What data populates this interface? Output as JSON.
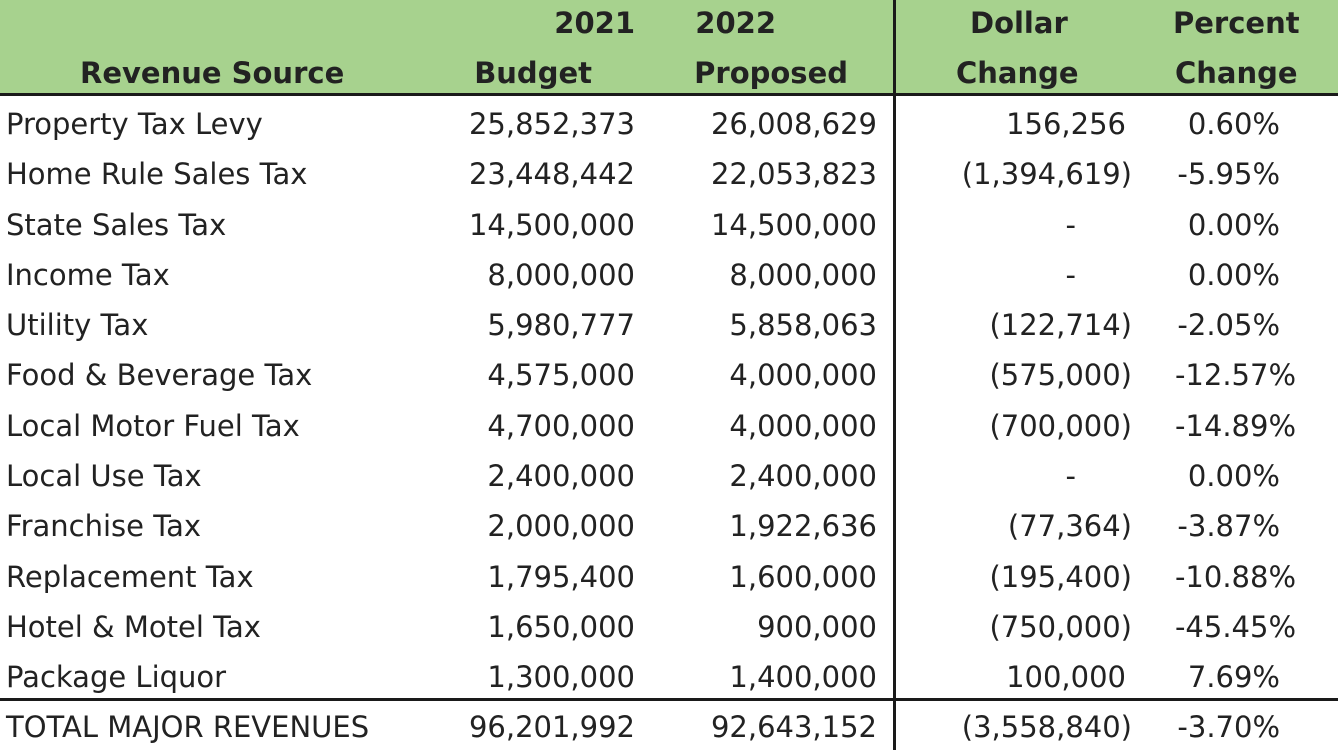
{
  "header": {
    "source_label": "Revenue Source",
    "col_2021_line1": "2021",
    "col_2021_line2": "Budget",
    "col_2022_line1": "2022",
    "col_2022_line2": "Proposed",
    "col_dollar_line1": "Dollar",
    "col_dollar_line2": "Change",
    "col_percent_line1": "Percent",
    "col_percent_line2": "Change"
  },
  "rows": [
    {
      "source": "Property Tax Levy",
      "budget_2021": "25,852,373",
      "proposed_2022": "26,008,629",
      "dollar_change": "156,256",
      "percent_change": "0.60%"
    },
    {
      "source": "Home Rule Sales Tax",
      "budget_2021": "23,448,442",
      "proposed_2022": "22,053,823",
      "dollar_change": "(1,394,619)",
      "percent_change": "-5.95%"
    },
    {
      "source": "State Sales Tax",
      "budget_2021": "14,500,000",
      "proposed_2022": "14,500,000",
      "dollar_change": "-",
      "percent_change": "0.00%"
    },
    {
      "source": "Income Tax",
      "budget_2021": "8,000,000",
      "proposed_2022": "8,000,000",
      "dollar_change": "-",
      "percent_change": "0.00%"
    },
    {
      "source": "Utility Tax",
      "budget_2021": "5,980,777",
      "proposed_2022": "5,858,063",
      "dollar_change": "(122,714)",
      "percent_change": "-2.05%"
    },
    {
      "source": "Food & Beverage Tax",
      "budget_2021": "4,575,000",
      "proposed_2022": "4,000,000",
      "dollar_change": "(575,000)",
      "percent_change": "-12.57%"
    },
    {
      "source": "Local Motor Fuel Tax",
      "budget_2021": "4,700,000",
      "proposed_2022": "4,000,000",
      "dollar_change": "(700,000)",
      "percent_change": "-14.89%"
    },
    {
      "source": "Local Use Tax",
      "budget_2021": "2,400,000",
      "proposed_2022": "2,400,000",
      "dollar_change": "-",
      "percent_change": "0.00%"
    },
    {
      "source": "Franchise Tax",
      "budget_2021": "2,000,000",
      "proposed_2022": "1,922,636",
      "dollar_change": "(77,364)",
      "percent_change": "-3.87%"
    },
    {
      "source": "Replacement Tax",
      "budget_2021": "1,795,400",
      "proposed_2022": "1,600,000",
      "dollar_change": "(195,400)",
      "percent_change": "-10.88%"
    },
    {
      "source": "Hotel & Motel Tax",
      "budget_2021": "1,650,000",
      "proposed_2022": "900,000",
      "dollar_change": "(750,000)",
      "percent_change": "-45.45%"
    },
    {
      "source": "Package Liquor",
      "budget_2021": "1,300,000",
      "proposed_2022": "1,400,000",
      "dollar_change": "100,000",
      "percent_change": "7.69%"
    }
  ],
  "total": {
    "source": "TOTAL MAJOR REVENUES",
    "budget_2021": "96,201,992",
    "proposed_2022": "92,643,152",
    "dollar_change": "(3,558,840)",
    "percent_change": "-3.70%"
  },
  "colors": {
    "header_background": "#a7d28e",
    "rule_color": "#1a1a1a",
    "text_color": "#222222"
  }
}
